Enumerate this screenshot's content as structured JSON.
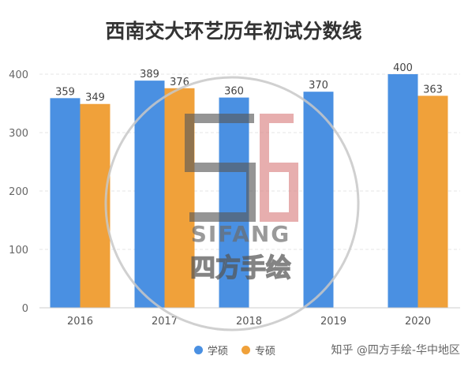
{
  "chart_data": {
    "type": "bar",
    "title": "西南交大环艺历年初试分数线",
    "categories": [
      "2016",
      "2017",
      "2018",
      "2019",
      "2020"
    ],
    "series": [
      {
        "name": "学硕",
        "color": "#4a90e2",
        "values": [
          359,
          389,
          360,
          370,
          400
        ]
      },
      {
        "name": "专硕",
        "color": "#f0a13a",
        "values": [
          349,
          376,
          null,
          null,
          363
        ]
      }
    ],
    "ylim": [
      0,
      400
    ],
    "yticks": [
      0,
      100,
      200,
      300,
      400
    ],
    "grid": true,
    "legend_position": "bottom"
  },
  "watermark": {
    "text": "SIFANG",
    "subtext": "四方手绘"
  },
  "credit": "知乎 @四方手绘-华中地区"
}
